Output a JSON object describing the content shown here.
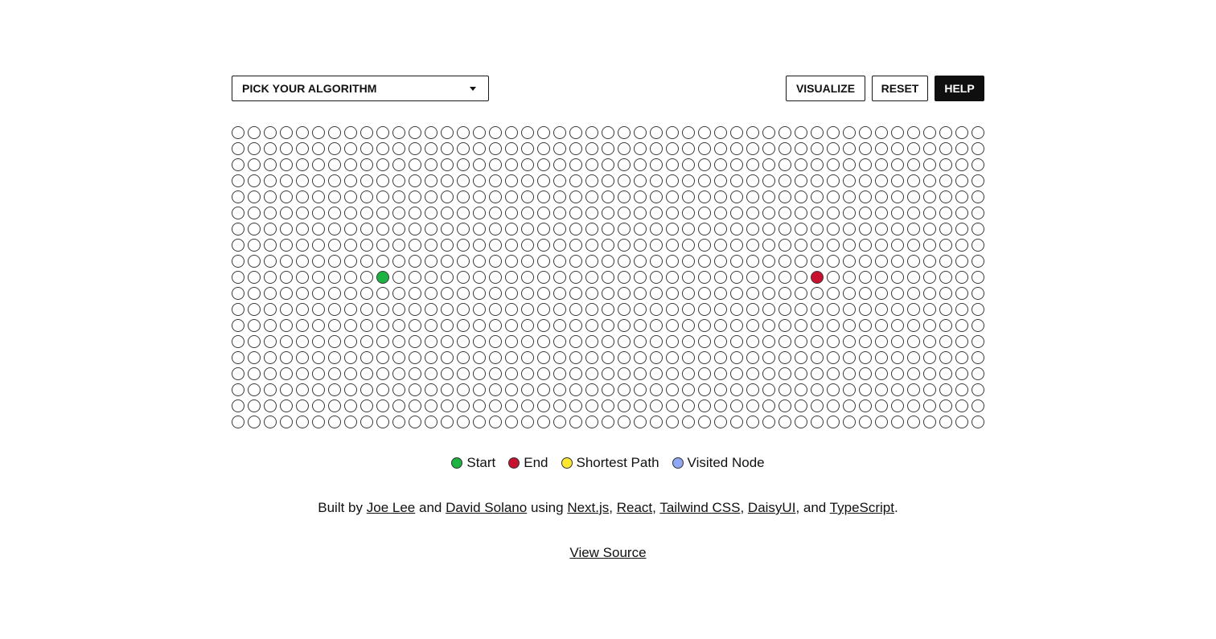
{
  "toolbar": {
    "algorithm_select": {
      "selected": "PICK YOUR ALGORITHM"
    },
    "visualize_label": "VISUALIZE",
    "reset_label": "RESET",
    "help_label": "HELP"
  },
  "grid": {
    "rows": 19,
    "cols": 47,
    "start": {
      "row": 9,
      "col": 9
    },
    "end": {
      "row": 9,
      "col": 36
    }
  },
  "colors": {
    "start": "#1db342",
    "end": "#c8102e",
    "shortest_path": "#fde82e",
    "visited": "#8fa8f5",
    "node_border": "#3a3a3a"
  },
  "legend": [
    {
      "label": "Start",
      "color": "#1db342"
    },
    {
      "label": "End",
      "color": "#c8102e"
    },
    {
      "label": "Shortest Path",
      "color": "#fde82e"
    },
    {
      "label": "Visited Node",
      "color": "#8fa8f5"
    }
  ],
  "credits": {
    "prefix": "Built by",
    "author1": "Joe Lee",
    "and": "and",
    "author2": "David Solano",
    "using": "using",
    "tech1": "Next.js",
    "tech2": "React",
    "tech3": "Tailwind CSS",
    "tech4": "DaisyUI",
    "and2": ", and",
    "tech5": "TypeScript",
    "end": "."
  },
  "source_link": "View Source"
}
